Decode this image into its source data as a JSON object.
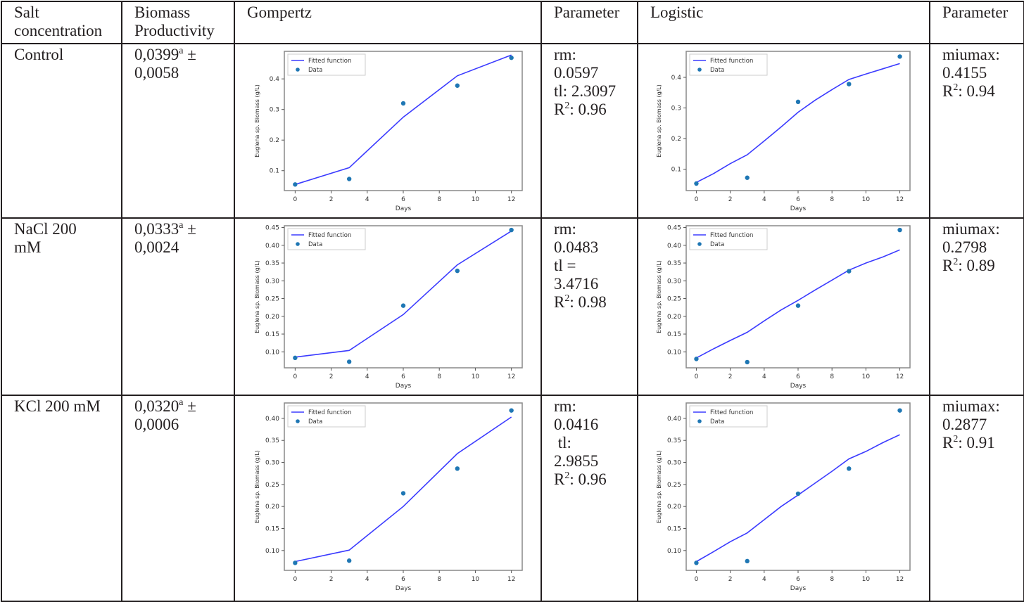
{
  "headers": [
    "Salt concentration",
    "Biomass Productivity",
    "Gompertz",
    "Parameter",
    "Logistic",
    "Parameter"
  ],
  "header_lines": {
    "salt": [
      "Salt",
      "concentration"
    ],
    "biomass": [
      "Biomass",
      "Productivity"
    ]
  },
  "rows": [
    {
      "salt": [
        "Control"
      ],
      "productivity": {
        "value": "0,0399",
        "sup": "a",
        "pm": " ±",
        "sd": "0,0058"
      },
      "gompertz_params": [
        {
          "text": "rm:"
        },
        {
          "text": "0.0597"
        },
        {
          "text": "tl: 2.3097"
        },
        {
          "r2": "0.96"
        }
      ],
      "logistic_params": [
        {
          "text": "miumax:"
        },
        {
          "text": "0.4155"
        },
        {
          "r2": "0.94"
        }
      ]
    },
    {
      "salt": [
        "NaCl 200",
        "mM"
      ],
      "productivity": {
        "value": "0,0333",
        "sup": "a",
        "pm": " ±",
        "sd": "0,0024"
      },
      "gompertz_params": [
        {
          "text": "rm:"
        },
        {
          "text": "0.0483"
        },
        {
          "text": "tl ="
        },
        {
          "text": "3.4716"
        },
        {
          "r2": "0.98"
        }
      ],
      "logistic_params": [
        {
          "text": "miumax:"
        },
        {
          "text": "0.2798"
        },
        {
          "r2": "0.89"
        }
      ]
    },
    {
      "salt": [
        "KCl 200 mM"
      ],
      "productivity": {
        "value": "0,0320",
        "sup": "a",
        "pm": " ±",
        "sd": "0,0006"
      },
      "gompertz_params": [
        {
          "text": "rm:"
        },
        {
          "text": "0.0416"
        },
        {
          "text": " tl:"
        },
        {
          "text": "2.9855"
        },
        {
          "r2": "0.96"
        }
      ],
      "logistic_params": [
        {
          "text": "miumax:"
        },
        {
          "text": "0.2877"
        },
        {
          "r2": "0.91"
        }
      ]
    }
  ],
  "r2_label": "R",
  "r2_sup": "2",
  "r2_sep": ": ",
  "colors": {
    "fit_line": "#3b3bff",
    "data_point": "#1f77b4",
    "border": "#231f20"
  },
  "chart_data": [
    {
      "id": "control-gompertz",
      "type": "line",
      "model": "Gompertz",
      "row": "Control",
      "xlabel": "Days",
      "ylabel": "Euglena sp. Biomass (g/L)",
      "xlim": [
        -0.6,
        12.6
      ],
      "ylim": [
        0.035,
        0.49
      ],
      "xticks": [
        0,
        2,
        4,
        6,
        8,
        10,
        12
      ],
      "yticks": [
        0.1,
        0.2,
        0.3,
        0.4
      ],
      "ytick_decimals": 1,
      "legend": [
        "Fitted function",
        "Data"
      ],
      "legend_position": "top-left",
      "series": [
        {
          "name": "Fitted function",
          "kind": "line",
          "x": [
            0,
            3,
            6,
            9,
            12
          ],
          "y": [
            0.055,
            0.11,
            0.275,
            0.41,
            0.478
          ]
        },
        {
          "name": "Data",
          "kind": "scatter",
          "x": [
            0,
            3,
            6,
            9,
            12
          ],
          "y": [
            0.055,
            0.073,
            0.32,
            0.378,
            0.469
          ]
        }
      ]
    },
    {
      "id": "control-logistic",
      "type": "line",
      "model": "Logistic",
      "row": "Control",
      "xlabel": "Days",
      "ylabel": "Euglena sp. Biomass (g/L)",
      "xlim": [
        -0.6,
        12.6
      ],
      "ylim": [
        0.03,
        0.485
      ],
      "xticks": [
        0,
        2,
        4,
        6,
        8,
        10,
        12
      ],
      "yticks": [
        0.1,
        0.2,
        0.3,
        0.4
      ],
      "ytick_decimals": 1,
      "legend": [
        "Fitted function",
        "Data"
      ],
      "legend_position": "top-left",
      "series": [
        {
          "name": "Fitted function",
          "kind": "line",
          "x": [
            0,
            1,
            2,
            3,
            4,
            5,
            6,
            7,
            8,
            9,
            10,
            11,
            12
          ],
          "y": [
            0.057,
            0.085,
            0.118,
            0.147,
            0.192,
            0.238,
            0.286,
            0.325,
            0.36,
            0.393,
            0.411,
            0.428,
            0.445
          ]
        },
        {
          "name": "Data",
          "kind": "scatter",
          "x": [
            0,
            3,
            6,
            9,
            12
          ],
          "y": [
            0.053,
            0.072,
            0.32,
            0.378,
            0.468
          ]
        }
      ]
    },
    {
      "id": "nacl-gompertz",
      "type": "line",
      "model": "Gompertz",
      "row": "NaCl 200 mM",
      "xlabel": "Days",
      "ylabel": "Euglena sp. Biomass (g/L)",
      "xlim": [
        -0.6,
        12.6
      ],
      "ylim": [
        0.055,
        0.455
      ],
      "xticks": [
        0,
        2,
        4,
        6,
        8,
        10,
        12
      ],
      "yticks": [
        0.1,
        0.15,
        0.2,
        0.25,
        0.3,
        0.35,
        0.4,
        0.45
      ],
      "ytick_decimals": 2,
      "legend": [
        "Fitted function",
        "Data"
      ],
      "legend_position": "top-left",
      "series": [
        {
          "name": "Fitted function",
          "kind": "line",
          "x": [
            0,
            3,
            6,
            9,
            12
          ],
          "y": [
            0.085,
            0.104,
            0.205,
            0.345,
            0.44
          ]
        },
        {
          "name": "Data",
          "kind": "scatter",
          "x": [
            0,
            3,
            6,
            9,
            12
          ],
          "y": [
            0.083,
            0.072,
            0.23,
            0.328,
            0.443
          ]
        }
      ]
    },
    {
      "id": "nacl-logistic",
      "type": "line",
      "model": "Logistic",
      "row": "NaCl 200 mM",
      "xlabel": "Days",
      "ylabel": "Euglena sp. Biomass (g/L)",
      "xlim": [
        -0.6,
        12.6
      ],
      "ylim": [
        0.055,
        0.455
      ],
      "xticks": [
        0,
        2,
        4,
        6,
        8,
        10,
        12
      ],
      "yticks": [
        0.1,
        0.15,
        0.2,
        0.25,
        0.3,
        0.35,
        0.4,
        0.45
      ],
      "ytick_decimals": 2,
      "legend": [
        "Fitted function",
        "Data"
      ],
      "legend_position": "top-left",
      "series": [
        {
          "name": "Fitted function",
          "kind": "line",
          "x": [
            0,
            1,
            2,
            3,
            4,
            5,
            6,
            7,
            8,
            9,
            10,
            11,
            12
          ],
          "y": [
            0.083,
            0.108,
            0.132,
            0.155,
            0.187,
            0.218,
            0.245,
            0.274,
            0.302,
            0.33,
            0.35,
            0.367,
            0.387
          ]
        },
        {
          "name": "Data",
          "kind": "scatter",
          "x": [
            0,
            3,
            6,
            9,
            12
          ],
          "y": [
            0.08,
            0.071,
            0.23,
            0.327,
            0.443
          ]
        }
      ]
    },
    {
      "id": "kcl-gompertz",
      "type": "line",
      "model": "Gompertz",
      "row": "KCl 200 mM",
      "xlabel": "Days",
      "ylabel": "Euglena sp. Biomass (g/L)",
      "xlim": [
        -0.6,
        12.6
      ],
      "ylim": [
        0.055,
        0.435
      ],
      "xticks": [
        0,
        2,
        4,
        6,
        8,
        10,
        12
      ],
      "yticks": [
        0.1,
        0.15,
        0.2,
        0.25,
        0.3,
        0.35,
        0.4
      ],
      "ytick_decimals": 2,
      "legend": [
        "Fitted function",
        "Data"
      ],
      "legend_position": "top-left",
      "series": [
        {
          "name": "Fitted function",
          "kind": "line",
          "x": [
            0,
            3,
            6,
            9,
            12
          ],
          "y": [
            0.075,
            0.101,
            0.2,
            0.32,
            0.403
          ]
        },
        {
          "name": "Data",
          "kind": "scatter",
          "x": [
            0,
            3,
            6,
            9,
            12
          ],
          "y": [
            0.072,
            0.077,
            0.23,
            0.286,
            0.418
          ]
        }
      ]
    },
    {
      "id": "kcl-logistic",
      "type": "line",
      "model": "Logistic",
      "row": "KCl 200 mM",
      "xlabel": "Days",
      "ylabel": "Euglena sp. Biomass (g/L)",
      "xlim": [
        -0.6,
        12.6
      ],
      "ylim": [
        0.055,
        0.435
      ],
      "xticks": [
        0,
        2,
        4,
        6,
        8,
        10,
        12
      ],
      "yticks": [
        0.1,
        0.15,
        0.2,
        0.25,
        0.3,
        0.35,
        0.4
      ],
      "ytick_decimals": 2,
      "legend": [
        "Fitted function",
        "Data"
      ],
      "legend_position": "top-left",
      "series": [
        {
          "name": "Fitted function",
          "kind": "line",
          "x": [
            0,
            1,
            2,
            3,
            4,
            5,
            6,
            7,
            8,
            9,
            10,
            11,
            12
          ],
          "y": [
            0.075,
            0.097,
            0.12,
            0.14,
            0.17,
            0.2,
            0.226,
            0.253,
            0.28,
            0.308,
            0.325,
            0.345,
            0.363
          ]
        },
        {
          "name": "Data",
          "kind": "scatter",
          "x": [
            0,
            3,
            6,
            9,
            12
          ],
          "y": [
            0.072,
            0.076,
            0.229,
            0.286,
            0.418
          ]
        }
      ]
    }
  ]
}
